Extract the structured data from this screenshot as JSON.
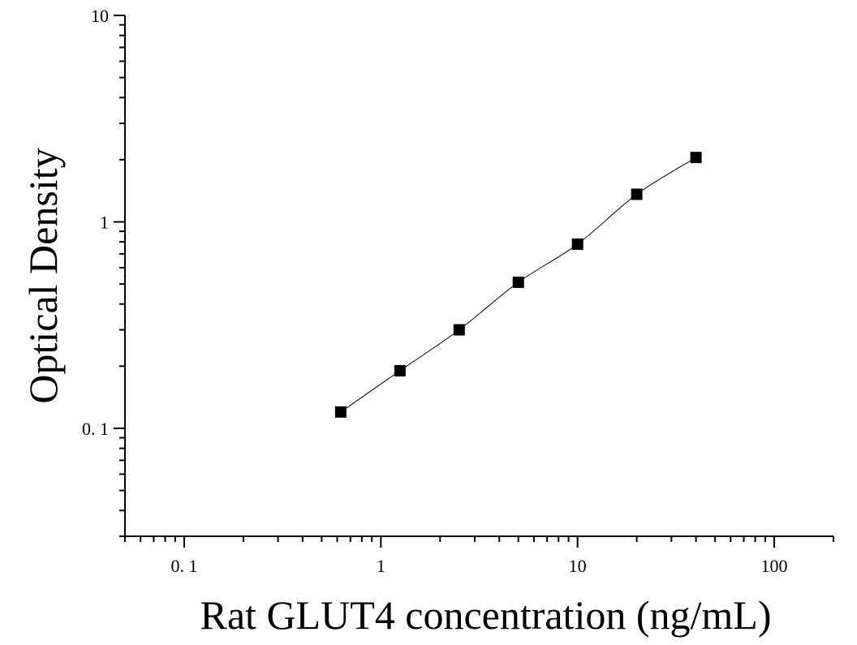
{
  "chart_data": {
    "type": "scatter",
    "x_scale": "log",
    "y_scale": "log",
    "xlabel": "Rat GLUT4 concentration (ng/mL)",
    "ylabel": "Optical Density",
    "xlim": [
      0.05,
      200
    ],
    "ylim": [
      0.03,
      10
    ],
    "x_ticks": [
      {
        "value": 0.1,
        "label": "0. 1"
      },
      {
        "value": 1,
        "label": "1"
      },
      {
        "value": 10,
        "label": "10"
      },
      {
        "value": 100,
        "label": "100"
      }
    ],
    "y_ticks": [
      {
        "value": 0.1,
        "label": "0. 1"
      },
      {
        "value": 1,
        "label": "1"
      },
      {
        "value": 10,
        "label": "10"
      }
    ],
    "series": [
      {
        "marker": "square",
        "color": "#000000",
        "x": [
          0.625,
          1.25,
          2.5,
          5,
          10,
          20,
          40
        ],
        "y": [
          0.12,
          0.19,
          0.3,
          0.51,
          0.78,
          1.36,
          2.05
        ]
      }
    ],
    "fit_curve": true,
    "grid": false,
    "legend": "none"
  }
}
